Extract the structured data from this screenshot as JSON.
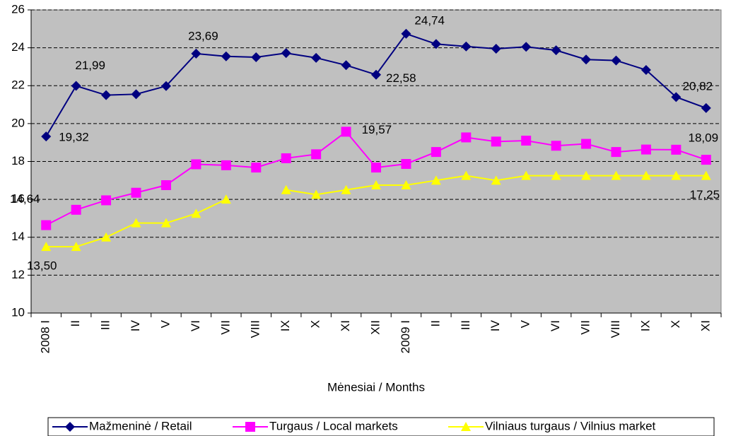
{
  "chart_data": {
    "type": "line",
    "xlabel": "Mėnesiai / Months",
    "categories": [
      "2008 I",
      "II",
      "III",
      "IV",
      "V",
      "VI",
      "VII",
      "VIII",
      "IX",
      "X",
      "XI",
      "XII",
      "2009 I",
      "II",
      "III",
      "IV",
      "V",
      "VI",
      "VII",
      "VIII",
      "IX",
      "X",
      "XI"
    ],
    "series": [
      {
        "name": "Mažmeninė / Retail",
        "color": "#000080",
        "marker": "diamond",
        "values": [
          19.32,
          21.99,
          21.5,
          21.55,
          21.98,
          23.69,
          23.55,
          23.5,
          23.72,
          23.47,
          23.08,
          22.58,
          24.74,
          24.2,
          24.07,
          23.95,
          24.05,
          23.87,
          23.38,
          23.33,
          22.83,
          21.4,
          20.82
        ],
        "value_labels": [
          "19,32",
          "21,99",
          null,
          null,
          null,
          "23,69",
          null,
          null,
          null,
          null,
          null,
          "22,58",
          "24,74",
          null,
          null,
          null,
          null,
          null,
          null,
          null,
          null,
          null,
          "20,82"
        ]
      },
      {
        "name": "Turgaus  / Local markets",
        "color": "#ff00ff",
        "marker": "square",
        "values": [
          14.64,
          15.45,
          15.95,
          16.35,
          16.75,
          17.85,
          17.8,
          17.68,
          18.17,
          18.38,
          19.57,
          17.68,
          17.87,
          18.5,
          19.27,
          19.05,
          19.1,
          18.83,
          18.93,
          18.5,
          18.63,
          18.62,
          18.09
        ],
        "value_labels": [
          "14,64",
          null,
          null,
          null,
          null,
          null,
          null,
          null,
          null,
          null,
          "19,57",
          null,
          null,
          null,
          null,
          null,
          null,
          null,
          null,
          null,
          null,
          null,
          "18,09"
        ]
      },
      {
        "name": "Vilniaus turgaus / Vilnius market",
        "color": "#ffff00",
        "marker": "triangle",
        "values": [
          13.5,
          13.5,
          14.0,
          14.75,
          14.75,
          15.25,
          16.0,
          null,
          16.5,
          16.25,
          16.5,
          16.75,
          16.75,
          17.0,
          17.25,
          17.0,
          17.25,
          17.25,
          17.25,
          17.25,
          17.25,
          17.25,
          17.25
        ],
        "value_labels": [
          "13,50",
          null,
          null,
          null,
          null,
          null,
          null,
          null,
          null,
          null,
          null,
          null,
          null,
          null,
          null,
          null,
          null,
          null,
          null,
          null,
          null,
          null,
          "17,25"
        ]
      }
    ],
    "ylim": [
      10,
      26
    ],
    "yticks": [
      10,
      12,
      14,
      16,
      18,
      20,
      22,
      24,
      26
    ],
    "grid": true,
    "legend": "bottom"
  }
}
